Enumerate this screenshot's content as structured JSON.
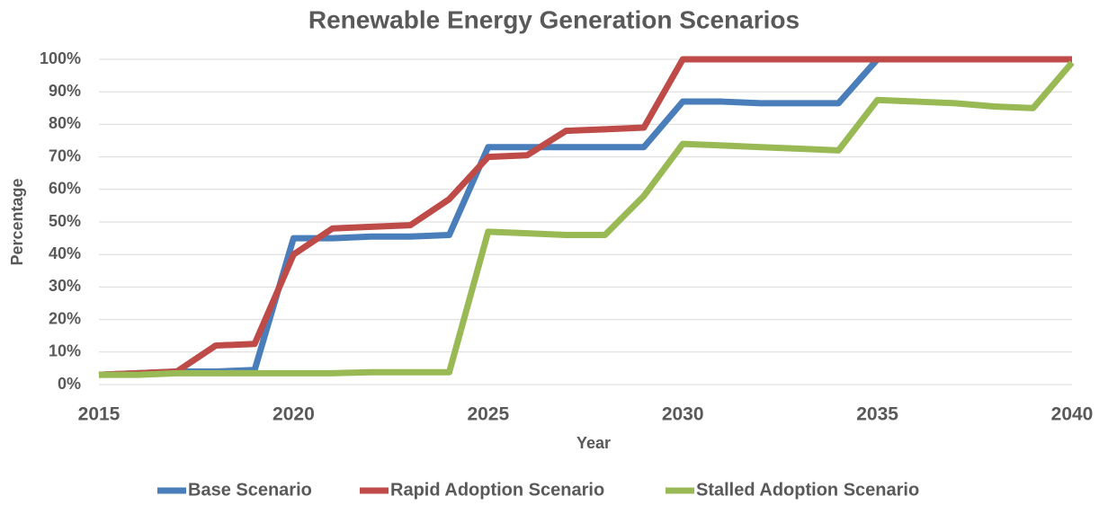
{
  "chart_data": {
    "type": "line",
    "title": "Renewable Energy Generation Scenarios",
    "x_label": "Year",
    "y_label": "Percentage",
    "x": [
      2015,
      2016,
      2017,
      2018,
      2019,
      2020,
      2021,
      2022,
      2023,
      2024,
      2025,
      2026,
      2027,
      2028,
      2029,
      2030,
      2031,
      2032,
      2033,
      2034,
      2035,
      2036,
      2037,
      2038,
      2039,
      2040
    ],
    "series": [
      {
        "name": "Base Scenario",
        "color": "#4a7ebb",
        "values": [
          3,
          3.5,
          4,
          4,
          4.5,
          45,
          45,
          45.5,
          45.5,
          46,
          73,
          73,
          73,
          73,
          73,
          87,
          87,
          86.5,
          86.5,
          86.5,
          100,
          100,
          100,
          100,
          100,
          100
        ]
      },
      {
        "name": "Rapid Adoption Scenario",
        "color": "#be4b48",
        "values": [
          3,
          3.5,
          4,
          12,
          12.5,
          40,
          48,
          48.5,
          49,
          57,
          70,
          70.5,
          78,
          78.5,
          79,
          100,
          100,
          100,
          100,
          100,
          100,
          100,
          100,
          100,
          100,
          100
        ]
      },
      {
        "name": "Stalled Adoption Scenario",
        "color": "#98b954",
        "values": [
          3,
          3,
          3.5,
          3.5,
          3.5,
          3.5,
          3.5,
          3.8,
          3.8,
          3.8,
          47,
          46.5,
          46,
          46,
          58,
          74,
          73.5,
          73,
          72.5,
          72,
          87.5,
          87,
          86.5,
          85.5,
          85,
          99
        ]
      }
    ],
    "xlim": [
      2015,
      2040
    ],
    "xticks": [
      2015,
      2020,
      2025,
      2030,
      2035,
      2040
    ],
    "ylim": [
      0,
      100
    ],
    "yticks": [
      {
        "value": 0,
        "label": "0%"
      },
      {
        "value": 10,
        "label": "10%"
      },
      {
        "value": 20,
        "label": "20%"
      },
      {
        "value": 30,
        "label": "30%"
      },
      {
        "value": 40,
        "label": "40%"
      },
      {
        "value": 50,
        "label": "50%"
      },
      {
        "value": 60,
        "label": "60%"
      },
      {
        "value": 70,
        "label": "70%"
      },
      {
        "value": 80,
        "label": "80%"
      },
      {
        "value": 90,
        "label": "90%"
      },
      {
        "value": 100,
        "label": "100%"
      }
    ],
    "grid": true,
    "legend": "bottom"
  }
}
